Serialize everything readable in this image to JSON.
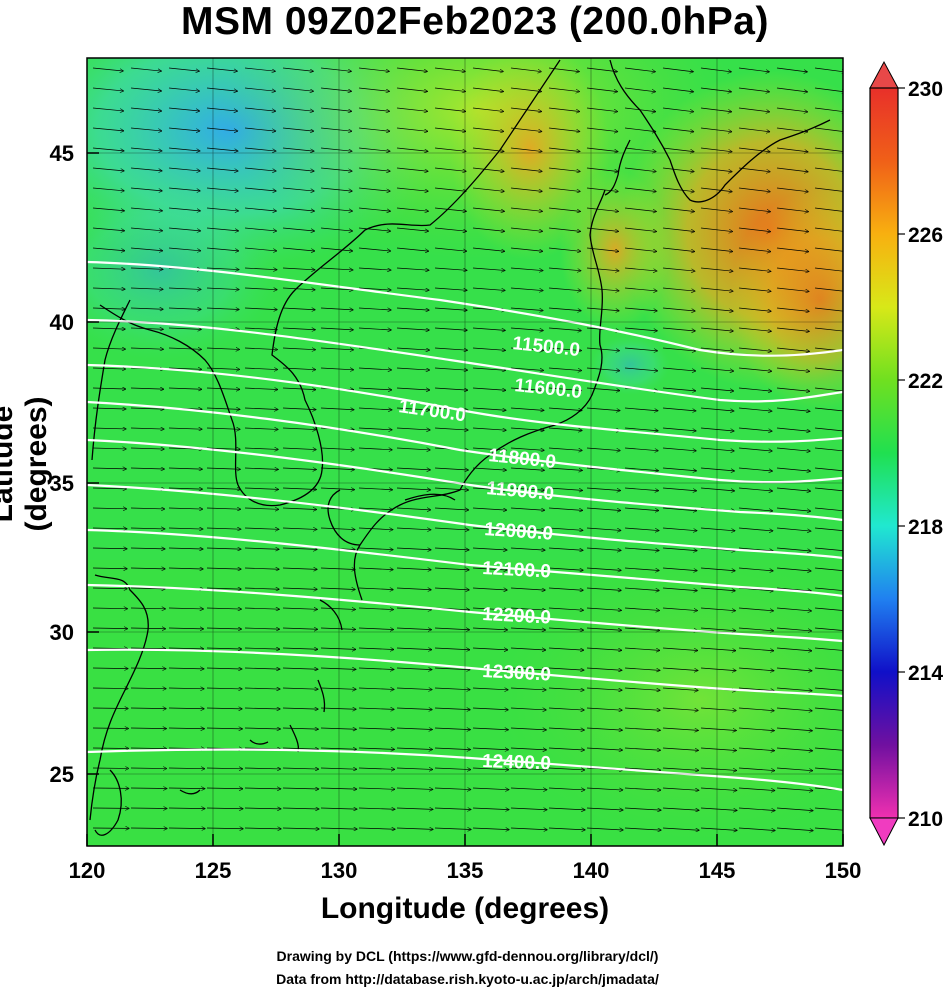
{
  "title": "MSM 09Z02Feb2023 (200.0hPa)",
  "xlabel": "Longitude (degrees)",
  "ylabel": "Latitude  (degrees)",
  "credit_line1": "Drawing by DCL (https://www.gfd-dennou.org/library/dcl/)",
  "credit_line2": "Data from http://database.rish.kyoto-u.ac.jp/arch/jmadata/",
  "x_ticks": [
    "120",
    "125",
    "130",
    "135",
    "140",
    "145",
    "150"
  ],
  "y_ticks": [
    "25",
    "30",
    "35",
    "40",
    "45"
  ],
  "colorbar_ticks": [
    "230",
    "226",
    "222",
    "218",
    "214",
    "210"
  ],
  "contour_labels": [
    "11500.0",
    "11600.0",
    "11700.0",
    "11800.0",
    "11900.0",
    "12000.0",
    "12100.0",
    "12200.0",
    "12300.0",
    "12400.0"
  ],
  "colors": {
    "field_base": "#2fe24a",
    "field_warm": "#f4a41a",
    "field_cool": "#3fb8e8",
    "contour": "#ffffff",
    "vectors": "#000000"
  },
  "map_extent": {
    "lon": [
      120,
      150
    ],
    "lat": [
      22.5,
      47.8
    ]
  },
  "colorbar_range": [
    210,
    230
  ]
}
